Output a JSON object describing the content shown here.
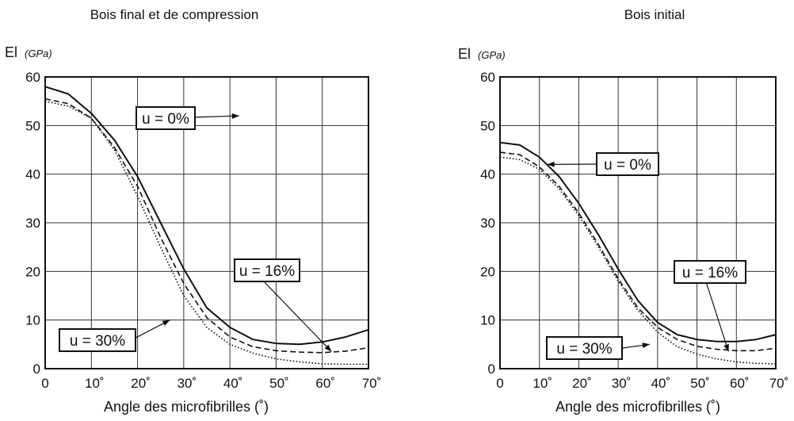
{
  "chart_data": [
    {
      "type": "line",
      "title": "Bois final et de compression",
      "ylabel": "El",
      "yunit": "(GPa)",
      "xlabel": "Angle des microfibrilles (˚)",
      "xlim": [
        0,
        70
      ],
      "ylim": [
        0,
        60
      ],
      "xticks": [
        "0",
        "10˚",
        "20˚",
        "30˚",
        "40˚",
        "50˚",
        "60˚",
        "70˚"
      ],
      "yticks": [
        "0",
        "10",
        "20",
        "30",
        "40",
        "50",
        "60"
      ],
      "grid": true,
      "series": [
        {
          "name": "u = 0%",
          "style": "solid",
          "x": [
            0,
            5,
            10,
            15,
            20,
            25,
            30,
            35,
            40,
            45,
            50,
            55,
            60,
            65,
            70
          ],
          "y": [
            58,
            56.5,
            52.5,
            47,
            39.5,
            30,
            20.5,
            12.5,
            8.5,
            6,
            5.2,
            5,
            5.5,
            6.5,
            8
          ]
        },
        {
          "name": "u = 16%",
          "style": "dashed",
          "x": [
            0,
            5,
            10,
            15,
            20,
            25,
            30,
            35,
            40,
            45,
            50,
            55,
            60,
            65,
            70
          ],
          "y": [
            55.5,
            54.5,
            51.5,
            45.5,
            37.5,
            27,
            17.5,
            10.5,
            6.5,
            4.5,
            3.7,
            3.4,
            3.3,
            3.6,
            4.3
          ]
        },
        {
          "name": "u = 30%",
          "style": "dotted",
          "x": [
            0,
            5,
            10,
            15,
            20,
            25,
            30,
            35,
            40,
            45,
            50,
            55,
            60,
            65,
            70
          ],
          "y": [
            55,
            54,
            51.5,
            45,
            35.5,
            25,
            15,
            8.5,
            5,
            3.2,
            2,
            1.4,
            1,
            0.9,
            0.9
          ]
        }
      ],
      "annotations": [
        "u = 0%",
        "u = 16%",
        "u = 30%"
      ]
    },
    {
      "type": "line",
      "title": "Bois initial",
      "ylabel": "El",
      "yunit": "(GPa)",
      "xlabel": "Angle des microfibrilles (˚)",
      "xlim": [
        0,
        70
      ],
      "ylim": [
        0,
        60
      ],
      "xticks": [
        "0",
        "10˚",
        "20˚",
        "30˚",
        "40˚",
        "50˚",
        "60˚",
        "70˚"
      ],
      "yticks": [
        "0",
        "10",
        "20",
        "30",
        "40",
        "50",
        "60"
      ],
      "grid": true,
      "series": [
        {
          "name": "u = 0%",
          "style": "solid",
          "x": [
            0,
            5,
            10,
            15,
            20,
            25,
            30,
            35,
            40,
            45,
            50,
            55,
            60,
            65,
            70
          ],
          "y": [
            46.5,
            46,
            43.5,
            39.5,
            34,
            27.5,
            20.5,
            14,
            9.5,
            7,
            6,
            5.6,
            5.6,
            6,
            7
          ]
        },
        {
          "name": "u = 16%",
          "style": "dashed",
          "x": [
            0,
            5,
            10,
            15,
            20,
            25,
            30,
            35,
            40,
            45,
            50,
            55,
            60,
            65,
            70
          ],
          "y": [
            44.5,
            44,
            41.5,
            37.5,
            32,
            25.5,
            18.5,
            12.5,
            8.5,
            6,
            4.6,
            4,
            3.7,
            3.7,
            4.2
          ]
        },
        {
          "name": "u = 30%",
          "style": "dotted",
          "x": [
            0,
            5,
            10,
            15,
            20,
            25,
            30,
            35,
            40,
            45,
            50,
            55,
            60,
            65,
            70
          ],
          "y": [
            43.5,
            43,
            41,
            37,
            31.5,
            25,
            18,
            12,
            7.5,
            4.5,
            3,
            2,
            1.4,
            1.1,
            1
          ]
        }
      ],
      "annotations": [
        "u = 0%",
        "u = 16%",
        "u = 30%"
      ]
    }
  ]
}
